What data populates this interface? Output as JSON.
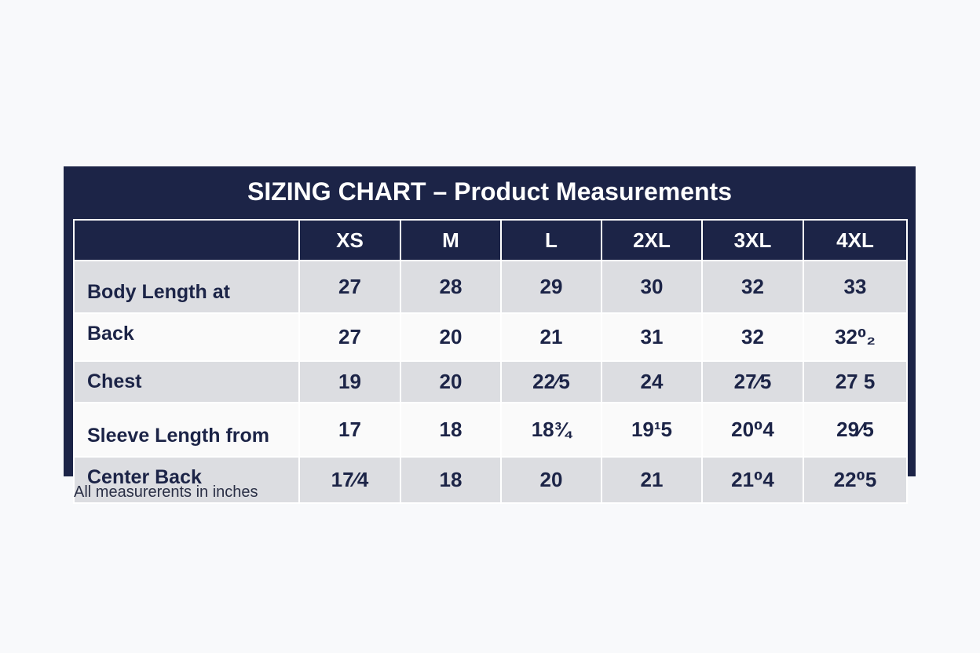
{
  "title": "SIZING CHART – Product Measurements",
  "table": {
    "columns": [
      "XS",
      "M",
      "L",
      "2XL",
      "3XL",
      "4XL"
    ],
    "rows": [
      {
        "label": "Body Length at",
        "values": [
          "27",
          "28",
          "29",
          "30",
          "32",
          "33"
        ]
      },
      {
        "label": "Back",
        "values": [
          "27",
          "20",
          "21",
          "31",
          "32",
          "32⁰₂"
        ]
      },
      {
        "label": "Chest",
        "values": [
          "19",
          "20",
          "22⁄5",
          "24",
          "27⁄5",
          "27 5"
        ]
      },
      {
        "label": "Sleeve Length from",
        "values": [
          "17",
          "18",
          "18¾",
          "19¹5",
          "20⁰4",
          "29⁄5"
        ]
      },
      {
        "label": "Center Back",
        "values": [
          "17⁄4",
          "18",
          "20",
          "21",
          "21⁰4",
          "22⁰5"
        ]
      }
    ]
  },
  "note": "All measurerents in inches"
}
